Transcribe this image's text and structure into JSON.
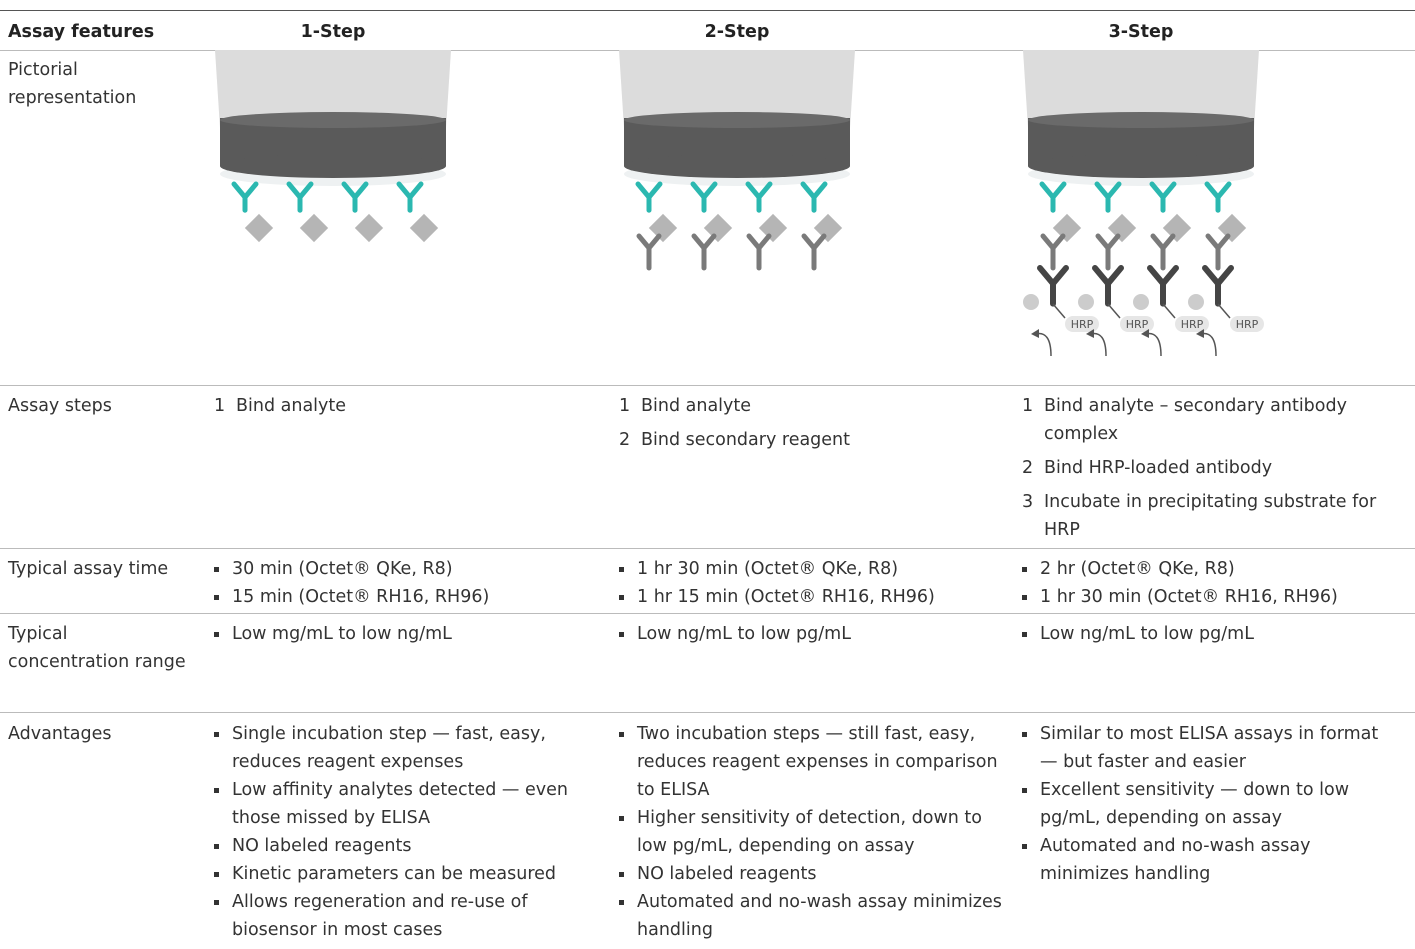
{
  "table": {
    "header": [
      "Assay features",
      "1-Step",
      "2-Step",
      "3-Step"
    ],
    "figure": {
      "hrp_label": "HRP"
    },
    "rows": [
      {
        "label": "Pictorial representation",
        "cells": []
      },
      {
        "label": "Assay steps",
        "cells": [
          [
            {
              "number": "1",
              "text": "Bind analyte"
            }
          ],
          [
            {
              "number": "1",
              "text": "Bind analyte"
            },
            {
              "number": "2",
              "text": "Bind secondary reagent"
            }
          ],
          [
            {
              "number": "1",
              "text": "Bind analyte – secondary antibody complex"
            },
            {
              "number": "2",
              "text": "Bind HRP-loaded antibody"
            },
            {
              "number": "3",
              "text": "Incubate in precipitating substrate for HRP"
            }
          ]
        ]
      },
      {
        "label": "Typical assay time",
        "cells": [
          [
            "30 min (Octet® QKe, R8)",
            "15 min (Octet® RH16, RH96)"
          ],
          [
            "1 hr 30 min (Octet® QKe, R8)",
            "1 hr 15 min (Octet® RH16, RH96)"
          ],
          [
            "2 hr (Octet® QKe, R8)",
            "1 hr 30 min (Octet® RH16, RH96)"
          ]
        ]
      },
      {
        "label": "Typical concentration range",
        "cells": [
          [
            "Low mg/mL to low ng/mL"
          ],
          [
            "Low ng/mL to low pg/mL"
          ],
          [
            "Low ng/mL to low pg/mL"
          ]
        ]
      },
      {
        "label": "Advantages",
        "cells": [
          [
            "Single incubation step — fast, easy, reduces reagent expenses",
            "Low affinity analytes detected — even those missed by ELISA",
            "NO labeled reagents",
            "Kinetic parameters can be measured",
            "Allows regeneration and re-use of biosensor in most cases"
          ],
          [
            "Two incubation steps — still fast, easy, reduces reagent expenses in comparison to ELISA",
            "Higher sensitivity of detection, down to low pg/mL, depending on assay",
            "NO labeled reagents",
            "Automated and no-wash assay minimizes handling"
          ],
          [
            "Similar to most ELISA assays in format — but faster and easier",
            "Excellent sensitivity — down to low pg/mL, depending on assay",
            "Automated and no-wash assay minimizes handling"
          ]
        ]
      }
    ]
  }
}
